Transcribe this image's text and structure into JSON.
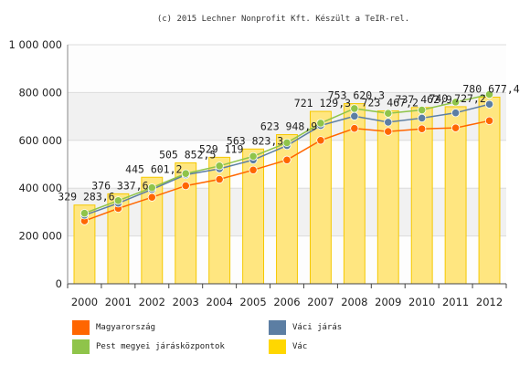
{
  "credit": "(c) 2015 Lechner Nonprofit Kft. Készült a TeIR-rel.",
  "chart_data": {
    "type": "bar",
    "categories": [
      "2000",
      "2001",
      "2002",
      "2003",
      "2004",
      "2005",
      "2006",
      "2007",
      "2008",
      "2009",
      "2010",
      "2011",
      "2012"
    ],
    "ylim": [
      0,
      1000000
    ],
    "yticks": [
      {
        "value": 0,
        "label": "0"
      },
      {
        "value": 200000,
        "label": "200 000"
      },
      {
        "value": 400000,
        "label": "400 000"
      },
      {
        "value": 600000,
        "label": "600 000"
      },
      {
        "value": 800000,
        "label": "800 000"
      },
      {
        "value": 1000000,
        "label": "1 000 000"
      }
    ],
    "grid": true,
    "legend_position": "bottom",
    "bar_series": {
      "name": "Vác",
      "color": "#ffd700",
      "values": [
        329283.6,
        376337.6,
        445601.2,
        505852.5,
        529119,
        563823.3,
        623948.9,
        721129.3,
        753620.3,
        723467.2,
        737462.9,
        740727.2,
        780677.4
      ],
      "labels": [
        "329 283,6",
        "376 337,6",
        "445 601,2",
        "505 852,5",
        "529 119",
        "563 823,3",
        "623 948,9",
        "721 129,3",
        "753 620,3",
        "723 467,2",
        "737 462,9",
        "740 727,2",
        "780 677,4"
      ]
    },
    "line_series": [
      {
        "name": "Magyarország",
        "color": "#ff6600",
        "values": [
          263000,
          315000,
          362000,
          410000,
          437000,
          476000,
          518000,
          600000,
          650000,
          637000,
          648000,
          652000,
          682000
        ]
      },
      {
        "name": "Váci járás",
        "color": "#5c7ea3",
        "values": [
          287000,
          337000,
          395000,
          456000,
          481000,
          518000,
          578000,
          662000,
          701000,
          676000,
          693000,
          715000,
          751000
        ]
      },
      {
        "name": "Pest megyei járásközpontok",
        "color": "#8fc44a",
        "values": [
          295000,
          348000,
          402000,
          461000,
          493000,
          533000,
          590000,
          672000,
          733000,
          713000,
          727000,
          760000,
          792000
        ]
      }
    ]
  },
  "legend": [
    {
      "name": "Magyarország",
      "color": "#ff6600"
    },
    {
      "name": "Váci járás",
      "color": "#5c7ea3"
    },
    {
      "name": "Pest megyei járásközpontok",
      "color": "#8fc44a"
    },
    {
      "name": "Vác",
      "color": "#ffd700"
    }
  ]
}
